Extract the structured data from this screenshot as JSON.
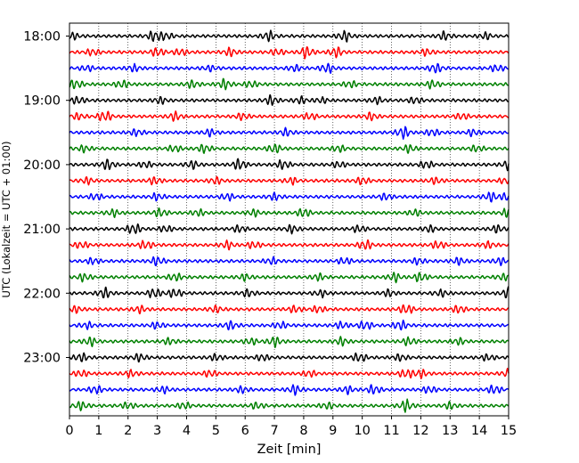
{
  "chart_data": {
    "type": "line",
    "title": "",
    "xlabel": "Zeit  [min]",
    "ylabel": "UTC (Lokalzeit = UTC + 01:00)",
    "xlim": [
      0,
      15
    ],
    "x_ticks": [
      "0",
      "1",
      "2",
      "3",
      "4",
      "5",
      "6",
      "7",
      "8",
      "9",
      "10",
      "11",
      "12",
      "13",
      "14",
      "15"
    ],
    "y_tick_labels": [
      "18:00",
      "19:00",
      "20:00",
      "21:00",
      "22:00",
      "23:00"
    ],
    "grid": "vertical-dotted",
    "trace_count": 24,
    "trace_minutes_each": 15,
    "trace_color_cycle": [
      "#000000",
      "#ff0000",
      "#0000ff",
      "#008000"
    ],
    "traces": [
      {
        "start": "18:00",
        "bursts": [
          [
            0.1,
            0.6
          ],
          [
            2.9,
            1.0
          ],
          [
            3.3,
            0.6
          ],
          [
            6.8,
            0.9
          ],
          [
            9.4,
            1.0
          ],
          [
            12.8,
            0.8
          ],
          [
            14.2,
            0.6
          ]
        ]
      },
      {
        "start": "18:15",
        "bursts": [
          [
            0.8,
            0.6
          ],
          [
            3.0,
            0.8
          ],
          [
            3.8,
            0.6
          ],
          [
            5.5,
            0.7
          ],
          [
            7.1,
            0.6
          ],
          [
            8.1,
            1.1
          ],
          [
            9.1,
            1.0
          ],
          [
            12.2,
            0.6
          ]
        ]
      },
      {
        "start": "18:30",
        "bursts": [
          [
            0.6,
            0.5
          ],
          [
            2.2,
            0.6
          ],
          [
            4.8,
            0.5
          ],
          [
            7.7,
            0.6
          ],
          [
            8.8,
            0.9
          ],
          [
            12.5,
            0.9
          ],
          [
            14.6,
            0.6
          ]
        ]
      },
      {
        "start": "18:45",
        "bursts": [
          [
            0.2,
            0.9
          ],
          [
            1.8,
            0.7
          ],
          [
            4.2,
            0.7
          ],
          [
            5.3,
            0.9
          ],
          [
            6.2,
            0.6
          ],
          [
            9.6,
            0.6
          ],
          [
            12.4,
            0.7
          ]
        ]
      },
      {
        "start": "19:00",
        "bursts": [
          [
            0.3,
            0.7
          ],
          [
            3.1,
            0.6
          ],
          [
            6.9,
            0.9
          ],
          [
            7.9,
            0.6
          ],
          [
            8.6,
            0.5
          ],
          [
            10.5,
            0.6
          ],
          [
            11.8,
            0.6
          ]
        ]
      },
      {
        "start": "19:15",
        "bursts": [
          [
            0.3,
            0.6
          ],
          [
            1.2,
            1.0
          ],
          [
            3.6,
            0.8
          ],
          [
            5.9,
            0.6
          ],
          [
            8.2,
            0.6
          ],
          [
            10.3,
            0.7
          ],
          [
            13.4,
            0.6
          ]
        ]
      },
      {
        "start": "19:30",
        "bursts": [
          [
            2.3,
            0.6
          ],
          [
            4.8,
            0.6
          ],
          [
            7.4,
            0.7
          ],
          [
            11.4,
            1.1
          ],
          [
            12.4,
            0.6
          ],
          [
            13.8,
            0.6
          ]
        ]
      },
      {
        "start": "19:45",
        "bursts": [
          [
            0.5,
            0.6
          ],
          [
            3.6,
            0.6
          ],
          [
            4.6,
            0.8
          ],
          [
            7.0,
            0.9
          ],
          [
            9.2,
            0.6
          ],
          [
            11.6,
            0.7
          ],
          [
            13.9,
            0.6
          ]
        ]
      },
      {
        "start": "20:00",
        "bursts": [
          [
            1.3,
            1.0
          ],
          [
            2.6,
            0.6
          ],
          [
            4.2,
            0.7
          ],
          [
            5.8,
            1.0
          ],
          [
            7.3,
            0.8
          ],
          [
            9.2,
            0.6
          ],
          [
            12.2,
            0.7
          ],
          [
            15.0,
            0.9
          ]
        ]
      },
      {
        "start": "20:15",
        "bursts": [
          [
            0.6,
            0.6
          ],
          [
            2.9,
            0.7
          ],
          [
            5.0,
            0.6
          ],
          [
            7.6,
            0.6
          ],
          [
            10.0,
            0.7
          ],
          [
            12.5,
            0.6
          ],
          [
            14.9,
            0.6
          ]
        ]
      },
      {
        "start": "20:30",
        "bursts": [
          [
            0.9,
            0.6
          ],
          [
            3.0,
            0.6
          ],
          [
            5.4,
            0.6
          ],
          [
            7.0,
            0.6
          ],
          [
            10.8,
            0.6
          ],
          [
            14.4,
            0.9
          ],
          [
            15.0,
            1.0
          ]
        ]
      },
      {
        "start": "20:45",
        "bursts": [
          [
            1.5,
            0.6
          ],
          [
            3.1,
            0.8
          ],
          [
            4.4,
            0.6
          ],
          [
            6.3,
            0.6
          ],
          [
            8.0,
            0.8
          ],
          [
            11.8,
            0.6
          ],
          [
            15.0,
            0.9
          ]
        ]
      },
      {
        "start": "21:00",
        "bursts": [
          [
            2.2,
            1.0
          ],
          [
            3.3,
            0.6
          ],
          [
            5.8,
            0.6
          ],
          [
            7.6,
            0.7
          ],
          [
            9.9,
            0.6
          ],
          [
            12.3,
            0.6
          ],
          [
            14.6,
            0.7
          ]
        ]
      },
      {
        "start": "21:15",
        "bursts": [
          [
            0.4,
            0.6
          ],
          [
            2.6,
            0.8
          ],
          [
            5.4,
            0.7
          ],
          [
            6.3,
            0.6
          ],
          [
            10.1,
            0.9
          ],
          [
            12.6,
            0.7
          ],
          [
            14.3,
            0.6
          ]
        ]
      },
      {
        "start": "21:30",
        "bursts": [
          [
            0.8,
            0.6
          ],
          [
            3.0,
            0.8
          ],
          [
            6.9,
            0.6
          ],
          [
            9.4,
            0.6
          ],
          [
            11.9,
            0.6
          ],
          [
            13.3,
            0.7
          ],
          [
            14.7,
            0.6
          ]
        ]
      },
      {
        "start": "21:45",
        "bursts": [
          [
            0.5,
            0.7
          ],
          [
            3.6,
            0.7
          ],
          [
            6.0,
            0.6
          ],
          [
            8.5,
            0.6
          ],
          [
            11.1,
            0.8
          ],
          [
            12.0,
            0.9
          ],
          [
            14.8,
            0.6
          ]
        ]
      },
      {
        "start": "22:00",
        "bursts": [
          [
            1.2,
            0.9
          ],
          [
            2.9,
            0.9
          ],
          [
            3.6,
            0.8
          ],
          [
            6.1,
            0.7
          ],
          [
            8.6,
            0.6
          ],
          [
            10.9,
            0.6
          ],
          [
            12.7,
            0.6
          ],
          [
            15.0,
            1.0
          ]
        ]
      },
      {
        "start": "22:15",
        "bursts": [
          [
            0.2,
            0.6
          ],
          [
            2.4,
            0.6
          ],
          [
            5.0,
            0.6
          ],
          [
            7.7,
            0.6
          ],
          [
            8.5,
            0.6
          ],
          [
            11.5,
            0.9
          ],
          [
            13.3,
            0.7
          ]
        ]
      },
      {
        "start": "22:30",
        "bursts": [
          [
            0.6,
            0.6
          ],
          [
            3.0,
            0.6
          ],
          [
            5.5,
            0.8
          ],
          [
            7.2,
            0.6
          ],
          [
            9.3,
            0.6
          ],
          [
            10.1,
            0.8
          ],
          [
            11.3,
            0.9
          ]
        ]
      },
      {
        "start": "22:45",
        "bursts": [
          [
            0.7,
            0.8
          ],
          [
            3.4,
            0.6
          ],
          [
            6.2,
            0.6
          ],
          [
            7.0,
            0.9
          ],
          [
            9.3,
            0.7
          ],
          [
            11.6,
            0.7
          ],
          [
            13.3,
            0.6
          ]
        ]
      },
      {
        "start": "23:00",
        "bursts": [
          [
            0.4,
            0.8
          ],
          [
            2.4,
            0.7
          ],
          [
            5.0,
            0.6
          ],
          [
            6.6,
            0.6
          ],
          [
            9.9,
            0.8
          ],
          [
            11.3,
            0.6
          ],
          [
            14.3,
            0.6
          ]
        ]
      },
      {
        "start": "23:15",
        "bursts": [
          [
            0.4,
            0.6
          ],
          [
            2.1,
            0.6
          ],
          [
            4.8,
            0.6
          ],
          [
            8.2,
            0.6
          ],
          [
            11.5,
            0.8
          ],
          [
            12.0,
            0.7
          ],
          [
            15.0,
            0.8
          ]
        ]
      },
      {
        "start": "23:30",
        "bursts": [
          [
            0.9,
            0.7
          ],
          [
            3.2,
            0.6
          ],
          [
            5.9,
            0.6
          ],
          [
            7.7,
            0.9
          ],
          [
            9.5,
            0.7
          ],
          [
            10.4,
            0.8
          ],
          [
            12.3,
            0.6
          ],
          [
            14.5,
            0.8
          ]
        ]
      },
      {
        "start": "23:45",
        "bursts": [
          [
            0.4,
            0.8
          ],
          [
            2.0,
            0.6
          ],
          [
            3.9,
            0.6
          ],
          [
            6.4,
            0.6
          ],
          [
            8.8,
            0.6
          ],
          [
            11.5,
            1.1
          ],
          [
            13.0,
            0.6
          ]
        ]
      }
    ]
  }
}
